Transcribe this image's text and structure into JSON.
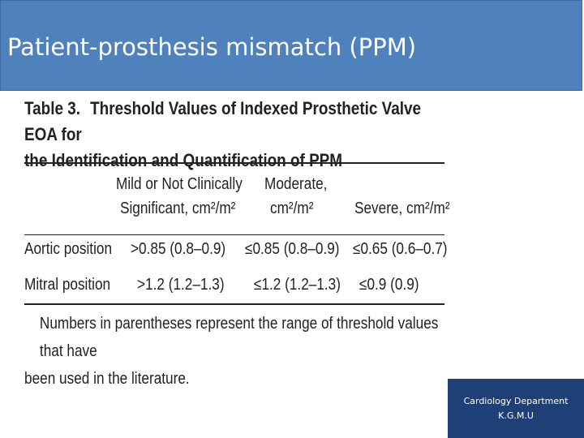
{
  "slide": {
    "title": "Patient-prosthesis mismatch (PPM)"
  },
  "table": {
    "number": "Table 3.",
    "title_line1": "Threshold Values of Indexed Prosthetic Valve EOA for",
    "title_line2": "the Identification and Quantification of PPM",
    "headers": {
      "mild_line1": "Mild or Not Clinically",
      "mild_line2": "Significant, cm²/m²",
      "moderate_line1": "Moderate,",
      "moderate_line2": "cm²/m²",
      "severe": "Severe, cm²/m²"
    },
    "rows": [
      {
        "label": "Aortic position",
        "mild": ">0.85 (0.8–0.9)",
        "moderate": "≤0.85 (0.8–0.9)",
        "severe": "≤0.65 (0.6–0.7)"
      },
      {
        "label": "Mitral position",
        "mild": ">1.2 (1.2–1.3)",
        "moderate": "≤1.2 (1.2–1.3)",
        "severe": "≤0.9 (0.9)"
      }
    ],
    "footnote_line1": "Numbers in parentheses represent the range of threshold values that have",
    "footnote_line2": "been used in the literature."
  },
  "footer_badge": {
    "line1": "Cardiology Department",
    "line2": "K.G.M.U",
    "background": "#1f3f77"
  },
  "colors": {
    "title_bar": "#4f81bd",
    "title_text": "#ffffff"
  }
}
